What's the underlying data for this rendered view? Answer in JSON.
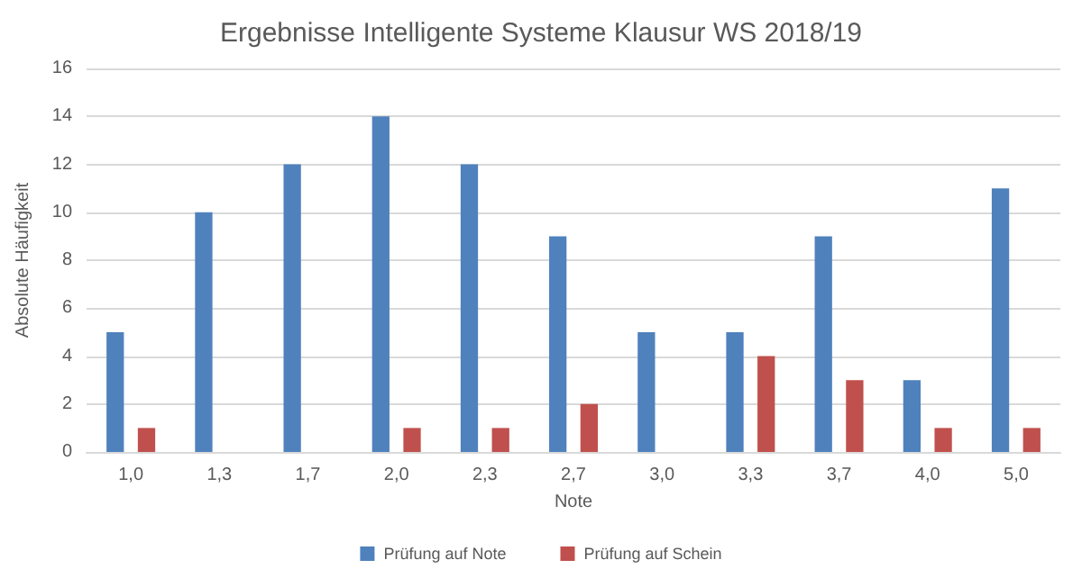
{
  "chart_data": {
    "type": "bar",
    "title": "Ergebnisse Intelligente Systeme Klausur WS 2018/19",
    "xlabel": "Note",
    "ylabel": "Absolute Häufigkeit",
    "categories": [
      "1,0",
      "1,3",
      "1,7",
      "2,0",
      "2,3",
      "2,7",
      "3,0",
      "3,3",
      "3,7",
      "4,0",
      "5,0"
    ],
    "series": [
      {
        "name": "Prüfung auf Note",
        "color": "#4f81bd",
        "values": [
          5,
          10,
          12,
          14,
          12,
          9,
          5,
          5,
          9,
          3,
          11
        ]
      },
      {
        "name": "Prüfung auf Schein",
        "color": "#c0504d",
        "values": [
          1,
          0,
          0,
          1,
          1,
          2,
          0,
          4,
          3,
          1,
          1
        ]
      }
    ],
    "ylim": [
      0,
      16
    ],
    "yticks": [
      0,
      2,
      4,
      6,
      8,
      10,
      12,
      14,
      16
    ],
    "grid": "y",
    "legend": "bottom"
  }
}
